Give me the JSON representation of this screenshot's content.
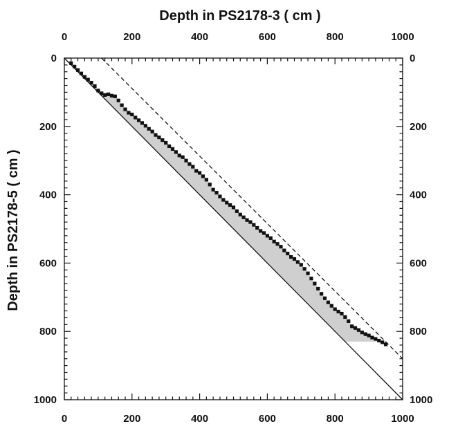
{
  "chart_data": {
    "type": "scatter",
    "xlabel": "Depth in PS2178-3 ( cm )",
    "ylabel": "Depth in PS2178-5 ( cm )",
    "xlim": [
      0,
      1000
    ],
    "ylim": [
      0,
      1000
    ],
    "y_inverted": true,
    "x_axis_position": "top",
    "grid": false,
    "x_ticks": [
      0,
      200,
      400,
      600,
      800,
      1000
    ],
    "y_ticks": [
      0,
      200,
      400,
      600,
      800,
      1000
    ],
    "x_tick_labels": [
      "0",
      "200",
      "400",
      "600",
      "800",
      "1000"
    ],
    "y_tick_labels": [
      "0",
      "200",
      "400",
      "600",
      "800",
      "1000"
    ],
    "bottom_tick_labels": [
      "0",
      "200",
      "400",
      "600",
      "800",
      "1000"
    ],
    "right_tick_labels": [
      "0",
      "200",
      "400",
      "600",
      "800",
      "1000"
    ],
    "reference_lines": [
      {
        "style": "solid",
        "from": [
          0,
          0
        ],
        "to": [
          1000,
          1000
        ]
      },
      {
        "style": "dashed",
        "from": [
          110,
          0
        ],
        "to": [
          1000,
          880
        ]
      }
    ],
    "fill": {
      "color": "#cfcfcf",
      "between": "points-and-1:1-line",
      "y_max": 830
    },
    "marker_color": "#111111",
    "series": [
      {
        "x": [
          20,
          30,
          40,
          50,
          60,
          70,
          80,
          90,
          100,
          110,
          120,
          130,
          140,
          150,
          160,
          170,
          180,
          190,
          200,
          210,
          220,
          230,
          240,
          250,
          260,
          270,
          280,
          290,
          300,
          310,
          320,
          330,
          340,
          350,
          360,
          370,
          380,
          390,
          400,
          410,
          420,
          430,
          440,
          450,
          460,
          470,
          480,
          490,
          500,
          510,
          520,
          530,
          540,
          550,
          560,
          570,
          580,
          590,
          600,
          610,
          620,
          630,
          640,
          650,
          660,
          670,
          680,
          690,
          700,
          710,
          720,
          730,
          740,
          750,
          760,
          770,
          780,
          790,
          800,
          810,
          820,
          830,
          840,
          850,
          860,
          870,
          880,
          890,
          900,
          910,
          920,
          930,
          940,
          950
        ],
        "y": [
          15,
          25,
          35,
          45,
          55,
          63,
          72,
          82,
          95,
          103,
          108,
          106,
          110,
          112,
          124,
          138,
          150,
          160,
          165,
          174,
          182,
          190,
          198,
          207,
          215,
          225,
          232,
          240,
          248,
          258,
          266,
          275,
          285,
          290,
          300,
          310,
          318,
          330,
          336,
          346,
          356,
          370,
          385,
          394,
          405,
          415,
          423,
          430,
          437,
          448,
          458,
          466,
          474,
          480,
          488,
          497,
          506,
          512,
          520,
          527,
          537,
          544,
          552,
          563,
          572,
          582,
          588,
          597,
          605,
          617,
          630,
          645,
          660,
          675,
          690,
          703,
          715,
          725,
          735,
          742,
          748,
          758,
          770,
          785,
          790,
          796,
          803,
          808,
          812,
          818,
          822,
          827,
          832,
          838
        ]
      }
    ]
  }
}
